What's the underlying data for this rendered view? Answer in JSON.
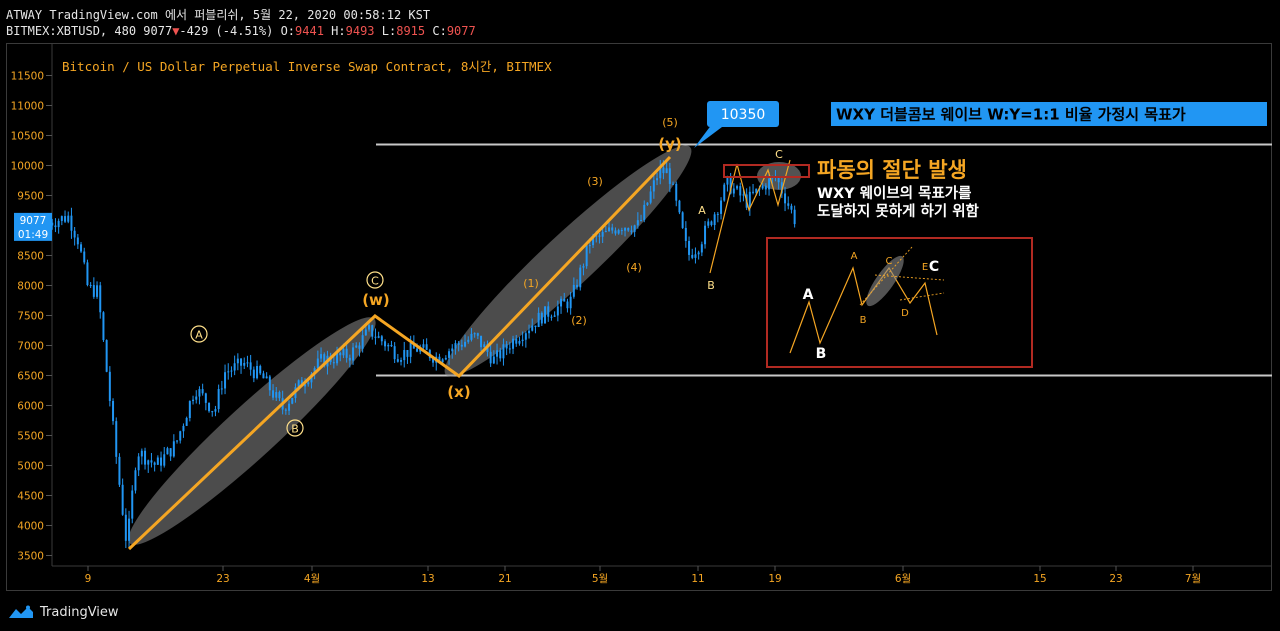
{
  "header": {
    "line1": "ATWAY TradingView.com 에서 퍼블리쉬, 5월 22, 2020 00:58:12 KST",
    "symbol_tf": "BITMEX:XBTUSD, 480",
    "last": "9077",
    "change": "-429 (-4.51%)",
    "o_label": "O:",
    "o": "9441",
    "h_label": "H:",
    "h": "9493",
    "l_label": "L:",
    "l": "8915",
    "c_label": "C:",
    "c": "9077"
  },
  "chart_data": {
    "type": "candlestick",
    "title": "Bitcoin / US Dollar Perpetual Inverse Swap Contract, 8시간, BITMEX",
    "ylim": [
      3300,
      11800
    ],
    "yticks": [
      3500,
      4000,
      4500,
      5000,
      5500,
      6000,
      6500,
      7000,
      7500,
      8000,
      8500,
      9000,
      9500,
      10000,
      10500,
      11000,
      11500
    ],
    "xticks": [
      "9",
      "23",
      "4월",
      "13",
      "21",
      "5월",
      "11",
      "19",
      "6월",
      "15",
      "23",
      "7월"
    ],
    "last_price_label": "9077",
    "countdown_label": "01:49",
    "grid": false,
    "price_path": [
      [
        "3월 5",
        9050
      ],
      [
        "3월 7",
        9150
      ],
      [
        "3월 8",
        8750
      ],
      [
        "3월 9",
        7950
      ],
      [
        "3월 10",
        7900
      ],
      [
        "3월 12",
        5000
      ],
      [
        "3월 13",
        3650
      ],
      [
        "3월 14",
        5250
      ],
      [
        "3월 16",
        5000
      ],
      [
        "3월 18",
        5350
      ],
      [
        "3월 20",
        6300
      ],
      [
        "3월 22",
        5900
      ],
      [
        "3월 23",
        6550
      ],
      [
        "3월 25",
        6700
      ],
      [
        "3월 27",
        6450
      ],
      [
        "3월 29",
        5950
      ],
      [
        "3월 31",
        6400
      ],
      [
        "4월 2",
        6750
      ],
      [
        "4월 5",
        6850
      ],
      [
        "4월 7",
        7250
      ],
      [
        "4월 10",
        6850
      ],
      [
        "4월 12",
        6950
      ],
      [
        "4월 14",
        6800
      ],
      [
        "4월 16",
        7000
      ],
      [
        "4월 18",
        7150
      ],
      [
        "4월 20",
        6750
      ],
      [
        "4월 22",
        7100
      ],
      [
        "4월 25",
        7500
      ],
      [
        "4월 28",
        7750
      ],
      [
        "4월 30",
        8750
      ],
      [
        "5월 1",
        8800
      ],
      [
        "5월 3",
        9000
      ],
      [
        "5월 5",
        9000
      ],
      [
        "5월 7",
        9900
      ],
      [
        "5월 8",
        9900
      ],
      [
        "5월 10",
        8500
      ],
      [
        "5월 11",
        8650
      ],
      [
        "5월 13",
        9300
      ],
      [
        "5월 14",
        9700
      ],
      [
        "5월 16",
        9400
      ],
      [
        "5월 18",
        9700
      ],
      [
        "5월 19",
        9800
      ],
      [
        "5월 20",
        9450
      ],
      [
        "5월 21",
        9077
      ]
    ],
    "levels": [
      {
        "name": "upper",
        "value": 10350
      },
      {
        "name": "lower",
        "value": 6500
      }
    ],
    "wave_labels": [
      "Ⓐ",
      "Ⓑ",
      "Ⓒ",
      "(w)",
      "(x)",
      "(y)",
      "(1)",
      "(2)",
      "(3)",
      "(4)",
      "(5)",
      "A",
      "B",
      "C"
    ],
    "price_callout": "10350",
    "annotations": {
      "banner": "WXY 더블콤보 웨이브 W:Y=1:1 비율 가정시 목표가",
      "cut_title": "파동의 절단 발생",
      "cut_line1": "WXY 웨이브의 목표가를",
      "cut_line2": "도달하지 못하게 하기 위함"
    },
    "inset": {
      "labels": [
        "A",
        "B",
        "C",
        "D",
        "E",
        "A",
        "B",
        "C"
      ]
    }
  },
  "colors": {
    "background": "#000000",
    "candle": "#2196f3",
    "trend": "#f5a623",
    "accent_text": "#f5a623",
    "level_line": "#c8c8c8",
    "ellipse": "#7a7a7a",
    "box": "#b22a22",
    "callout": "#2196f3",
    "down": "#ef5350"
  },
  "footer": {
    "brand": "TradingView"
  }
}
